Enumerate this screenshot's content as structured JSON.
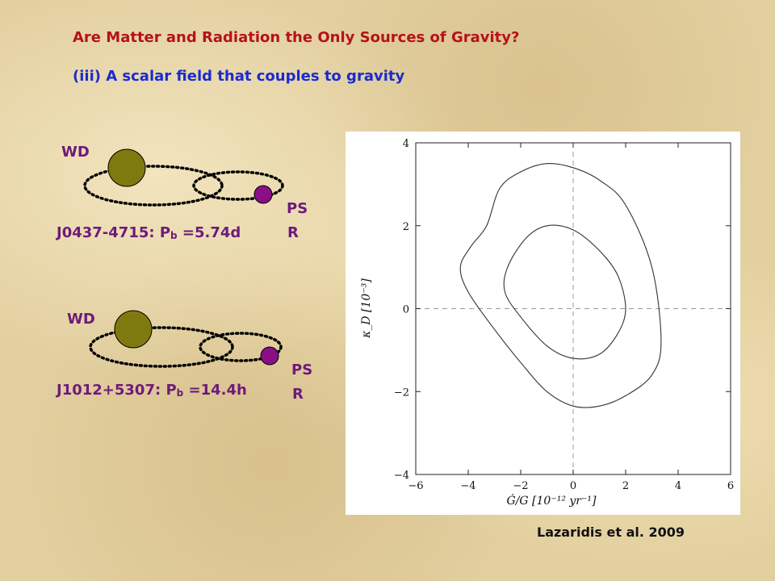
{
  "title": "Are Matter and Radiation the Only Sources of Gravity?",
  "subtitle": "(iii) A scalar field that couples to gravity",
  "systems": [
    {
      "wd_label": "WD",
      "psr_label_line1": "PS",
      "psr_label_line2": "R",
      "name": "J0437-4715: P",
      "pb_sub": "b",
      "pb_value": " =5.74d"
    },
    {
      "wd_label": "WD",
      "psr_label_line1": "PS",
      "psr_label_line2": "R",
      "name": "J1012+5307: P",
      "pb_sub": "b",
      "pb_value": " =14.4h"
    }
  ],
  "colors": {
    "title": "#b5121b",
    "subtitle": "#1a2bd0",
    "label": "#6e1a7a",
    "white_dwarf": "#7f7a0f",
    "pulsar": "#8a0f86"
  },
  "citation": "Lazaridis et al. 2009",
  "chart_data": {
    "type": "contour",
    "xlabel": "Ġ/G [10⁻¹² yr⁻¹]",
    "ylabel": "κ_D [10⁻³]",
    "xlim": [
      -6,
      6
    ],
    "ylim": [
      -4,
      4
    ],
    "xticks": [
      "−6",
      "−4",
      "−2",
      "0",
      "2",
      "4",
      "6"
    ],
    "yticks": [
      "−4",
      "−2",
      "0",
      "2",
      "4"
    ],
    "reference_lines": {
      "x": 0,
      "y": 0,
      "style": "dashed"
    },
    "series": [
      {
        "points": [
          [
            -3.3,
            2.0
          ],
          [
            -2.8,
            2.9
          ],
          [
            -2.0,
            3.3
          ],
          [
            -1.0,
            3.5
          ],
          [
            0.0,
            3.4
          ],
          [
            1.0,
            3.1
          ],
          [
            2.0,
            2.5
          ],
          [
            3.0,
            1.0
          ],
          [
            3.35,
            -0.8
          ],
          [
            3.0,
            -1.6
          ],
          [
            2.0,
            -2.1
          ],
          [
            1.0,
            -2.35
          ],
          [
            0.0,
            -2.35
          ],
          [
            -1.0,
            -2.0
          ],
          [
            -2.0,
            -1.3
          ],
          [
            -3.0,
            -0.5
          ],
          [
            -4.0,
            0.4
          ],
          [
            -4.3,
            1.0
          ],
          [
            -3.9,
            1.5
          ]
        ]
      },
      {
        "points": [
          [
            -2.5,
            1.0
          ],
          [
            -1.8,
            1.7
          ],
          [
            -1.0,
            2.0
          ],
          [
            0.0,
            1.9
          ],
          [
            1.0,
            1.4
          ],
          [
            1.7,
            0.8
          ],
          [
            2.0,
            0.0
          ],
          [
            1.7,
            -0.6
          ],
          [
            1.0,
            -1.1
          ],
          [
            0.0,
            -1.2
          ],
          [
            -1.0,
            -0.9
          ],
          [
            -2.0,
            -0.2
          ],
          [
            -2.6,
            0.4
          ]
        ]
      }
    ]
  }
}
